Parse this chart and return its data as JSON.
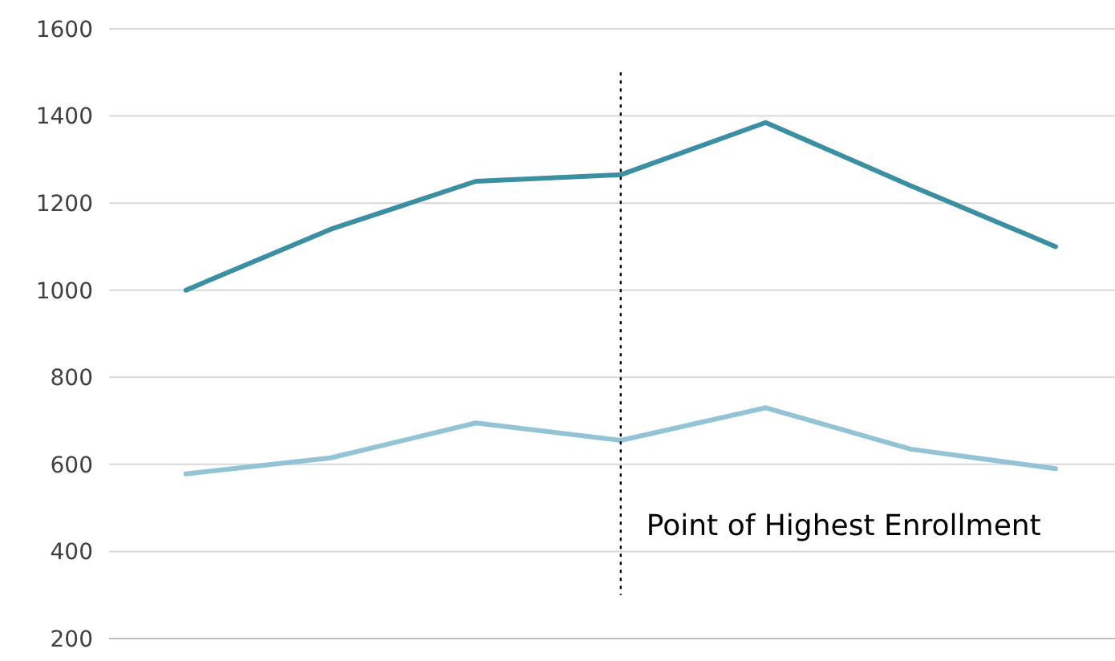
{
  "chart_data": {
    "type": "line",
    "categories": [
      null,
      null,
      null,
      null,
      null,
      null,
      null
    ],
    "ylim": [
      200,
      1600
    ],
    "yticks": [
      200,
      400,
      600,
      800,
      1000,
      1200,
      1400,
      1600
    ],
    "grid": "y",
    "tick_labels": "y",
    "line_style": "solid",
    "marker": "none",
    "series": [
      {
        "color": "#3a8fa3",
        "values": [
          1000,
          1140,
          1250,
          1265,
          1385,
          1240,
          1100
        ]
      },
      {
        "color": "#92c4d6",
        "values": [
          578,
          615,
          695,
          655,
          730,
          635,
          590
        ]
      }
    ],
    "annotations": [
      "Point of Highest Enrollment"
    ]
  }
}
